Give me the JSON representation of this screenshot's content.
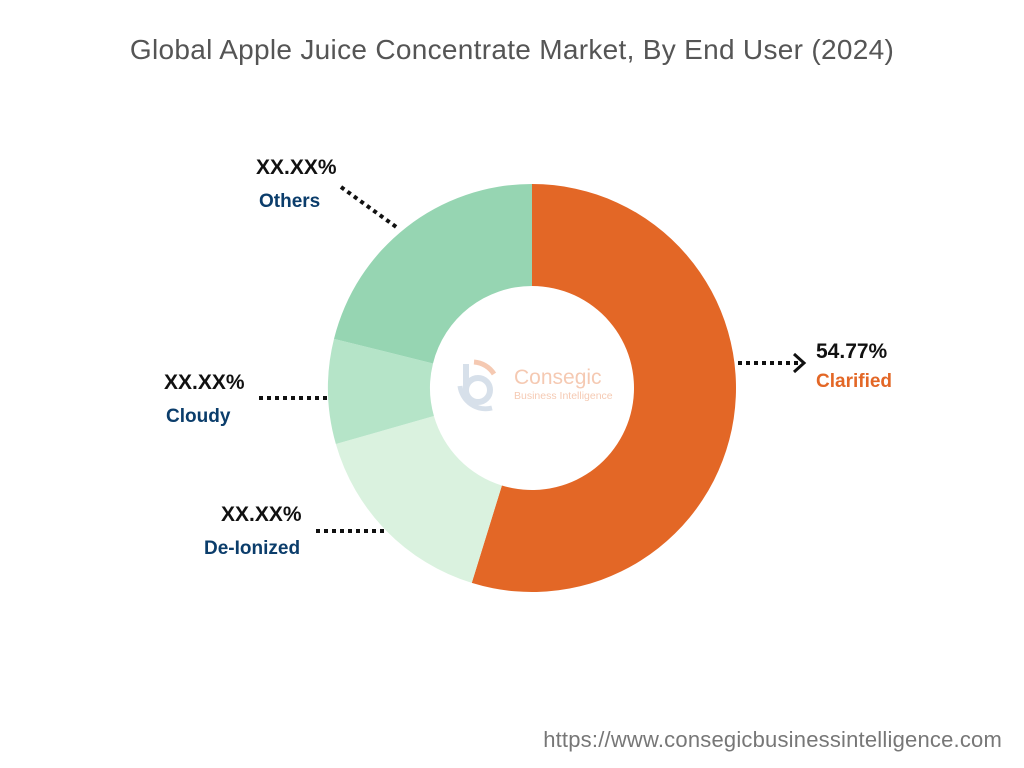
{
  "chart_data": {
    "type": "pie",
    "subtype": "donut",
    "title": "Global Apple Juice Concentrate Market, By End User (2024)",
    "categories": [
      "Clarified",
      "De-Ionized",
      "Cloudy",
      "Others"
    ],
    "values": [
      54.77,
      15.8,
      8.3,
      21.13
    ],
    "value_labels": [
      "54.77%",
      "XX.XX%",
      "XX.XX%",
      "XX.XX%"
    ],
    "colors": [
      "#e36726",
      "#daf2df",
      "#b5e4c8",
      "#96d5b2"
    ],
    "start_angle": "top",
    "direction": "clockwise"
  },
  "logo": {
    "name": "Consegic",
    "tagline": "Business Intelligence"
  },
  "footer_url": "https://www.consegicbusinessintelligence.com"
}
